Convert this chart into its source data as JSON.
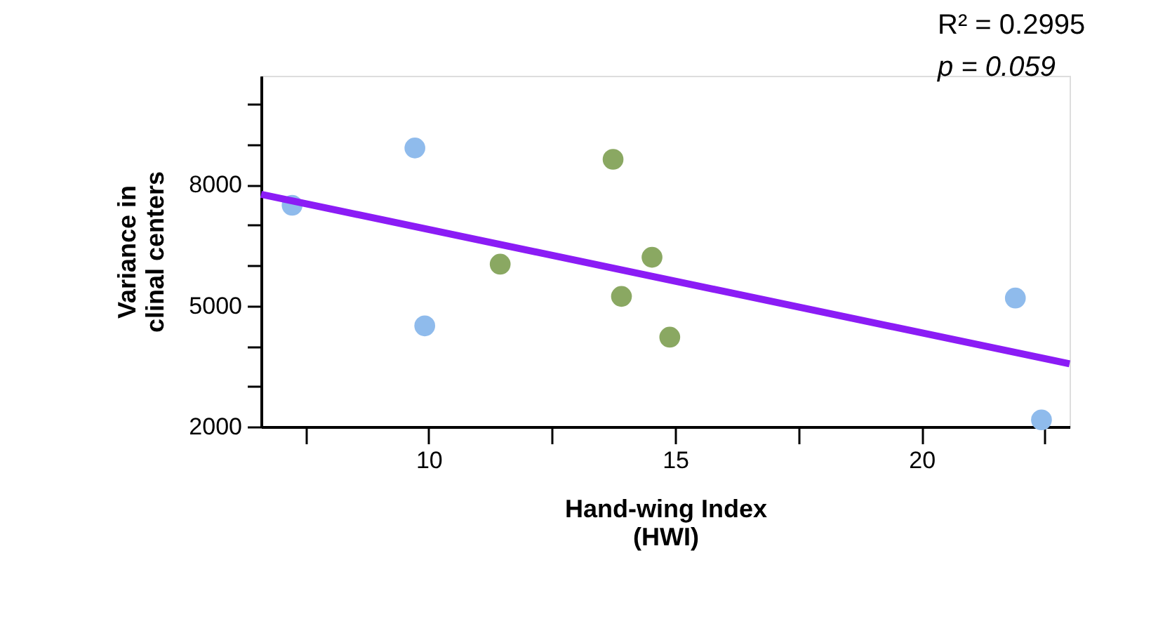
{
  "chart_data": {
    "type": "scatter",
    "xlabel": "Hand-wing Index\n(HWI)",
    "ylabel": "Variance in\nclinal centers",
    "annotations": [
      "R² = 0.2995",
      "p = 0.059"
    ],
    "series": [
      {
        "color": "#8fbbec",
        "x": [
          7.23,
          9.72,
          9.92,
          21.9,
          22.43
        ],
        "values": [
          7490,
          8910,
          4500,
          5190,
          2170
        ]
      },
      {
        "color": "#8aa862",
        "x": [
          11.45,
          13.74,
          14.53,
          13.91,
          14.89
        ],
        "values": [
          6030,
          8630,
          6200,
          5230,
          4220
        ]
      },
      {
        "type": "line",
        "marker": "none",
        "color": "#8b1cf5",
        "x": [
          6.6,
          23.0
        ],
        "values": [
          7760,
          3560
        ]
      }
    ],
    "xlim": [
      6.6,
      23.0
    ],
    "ylim": [
      2000,
      10700
    ],
    "xticks": [
      {
        "value": 7.5,
        "label": null
      },
      10,
      {
        "value": 12.5,
        "label": null
      },
      15,
      {
        "value": 17.5,
        "label": null
      },
      20,
      {
        "value": 22.5,
        "label": null
      }
    ],
    "yticks": [
      2000,
      {
        "value": 3000,
        "label": null
      },
      {
        "value": 4000,
        "label": null
      },
      5000,
      {
        "value": 6000,
        "label": null
      },
      {
        "value": 7000,
        "label": null
      },
      8000,
      {
        "value": 9000,
        "label": null
      },
      {
        "value": 10000,
        "label": null
      }
    ],
    "grid": false,
    "marker": "circle",
    "line_style": "solid"
  }
}
